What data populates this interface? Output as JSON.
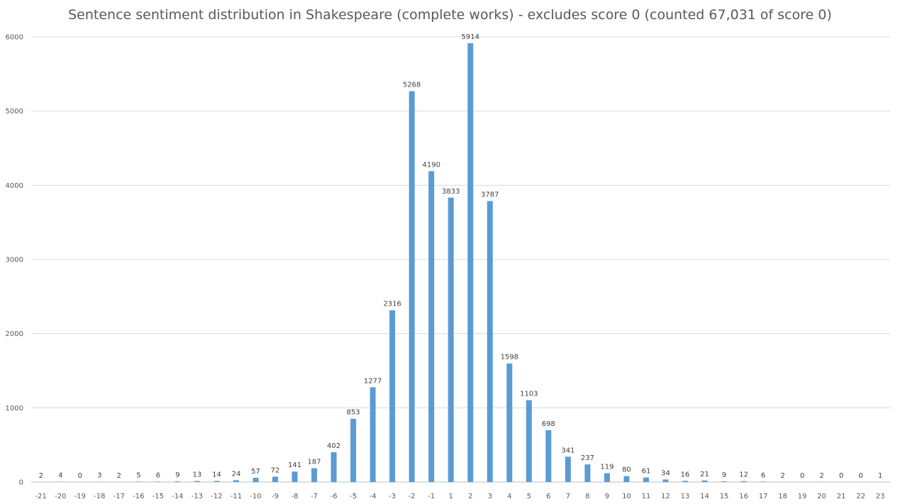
{
  "chart_data": {
    "type": "bar",
    "title": "Sentence sentiment distribution in Shakespeare (complete works) - excludes score 0 (counted 67,031 of score 0)",
    "xlabel": "",
    "ylabel": "",
    "categories": [
      "-21",
      "-20",
      "-19",
      "-18",
      "-17",
      "-16",
      "-15",
      "-14",
      "-13",
      "-12",
      "-11",
      "-10",
      "-9",
      "-8",
      "-7",
      "-6",
      "-5",
      "-4",
      "-3",
      "-2",
      "-1",
      "1",
      "2",
      "3",
      "4",
      "5",
      "6",
      "7",
      "8",
      "9",
      "10",
      "11",
      "12",
      "13",
      "14",
      "15",
      "16",
      "17",
      "18",
      "19",
      "20",
      "21",
      "22",
      "23"
    ],
    "values": [
      2,
      4,
      0,
      3,
      2,
      5,
      6,
      9,
      13,
      14,
      24,
      57,
      72,
      141,
      187,
      402,
      853,
      1277,
      2316,
      5268,
      4190,
      3833,
      5914,
      3787,
      1598,
      1103,
      698,
      341,
      237,
      119,
      80,
      61,
      34,
      16,
      21,
      9,
      12,
      6,
      2,
      0,
      2,
      0,
      0,
      1
    ],
    "ylim": [
      0,
      6000
    ],
    "yticks": [
      0,
      1000,
      2000,
      3000,
      4000,
      5000,
      6000
    ],
    "grid": true,
    "legend": "none",
    "data_labels": true,
    "colors": {
      "bar": "#5b9bd5",
      "grid": "#d9d9d9",
      "axis": "#bfbfbf"
    }
  }
}
